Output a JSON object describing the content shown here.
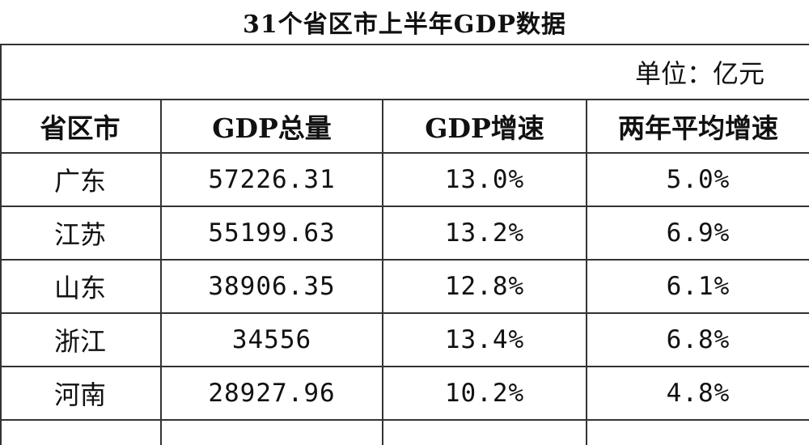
{
  "title": "31个省区市上半年GDP数据",
  "unit_label": "单位：亿元",
  "columns": [
    "省区市",
    "GDP总量",
    "GDP增速",
    "两年平均增速"
  ],
  "rows": [
    [
      "广东",
      "57226.31",
      "13.0%",
      "5.0%"
    ],
    [
      "江苏",
      "55199.63",
      "13.2%",
      "6.9%"
    ],
    [
      "山东",
      "38906.35",
      "12.8%",
      "6.1%"
    ],
    [
      "浙江",
      "34556",
      "13.4%",
      "6.8%"
    ],
    [
      "河南",
      "28927.96",
      "10.2%",
      "4.8%"
    ]
  ]
}
